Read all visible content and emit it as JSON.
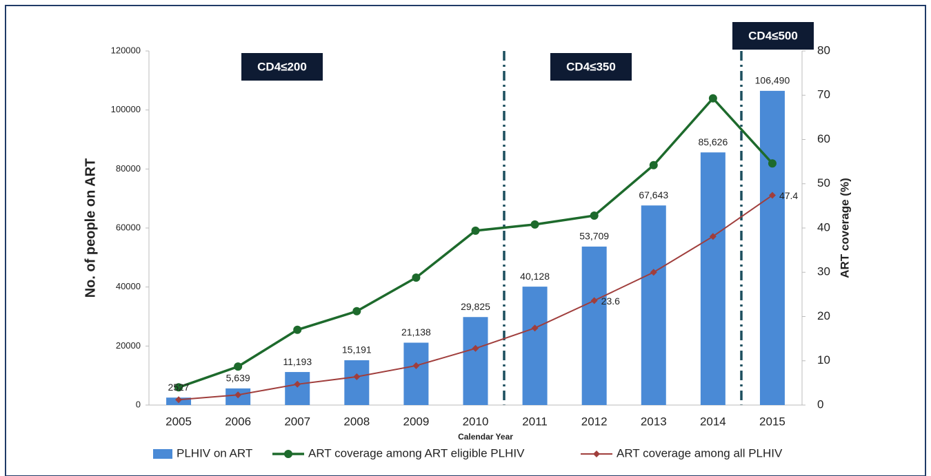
{
  "chart_data": {
    "type": "bar_line",
    "categories": [
      "2005",
      "2006",
      "2007",
      "2008",
      "2009",
      "2010",
      "2011",
      "2012",
      "2013",
      "2014",
      "2015"
    ],
    "series": [
      {
        "name": "PLHIV on ART",
        "type": "bar",
        "color": "#4a8ad6",
        "values": [
          2527,
          5639,
          11193,
          15191,
          21138,
          29825,
          40128,
          53709,
          67643,
          85626,
          106490
        ],
        "value_labels": [
          "2527",
          "5,639",
          "11,193",
          "15,191",
          "21,138",
          "29,825",
          "40,128",
          "53,709",
          "67,643",
          "85,626",
          "106,490"
        ]
      },
      {
        "name": "ART coverage among ART eligible PLHIV",
        "type": "line",
        "axis": "y2",
        "marker": "circle",
        "color": "#1d6a2c",
        "values": [
          4.0,
          8.7,
          17.0,
          21.2,
          28.8,
          39.4,
          40.8,
          42.8,
          54.2,
          69.3,
          54.6
        ]
      },
      {
        "name": "ART coverage among all PLHIV",
        "type": "line",
        "axis": "y2",
        "marker": "diamond",
        "color": "#a03e3c",
        "values": [
          1.2,
          2.3,
          4.7,
          6.4,
          8.9,
          12.8,
          17.4,
          23.6,
          30.0,
          38.1,
          47.4
        ],
        "value_labels": [
          null,
          null,
          null,
          null,
          null,
          null,
          null,
          "23.6",
          null,
          null,
          "47.4"
        ]
      }
    ],
    "ylabel": "No. of people on ART",
    "y2label": "ART coverage (%)",
    "xlabel": "Calendar Year",
    "ylim": [
      0,
      120000
    ],
    "yticks": [
      0,
      20000,
      40000,
      60000,
      80000,
      100000,
      120000
    ],
    "y2lim": [
      0,
      80
    ],
    "y2ticks": [
      0,
      10,
      20,
      30,
      40,
      50,
      60,
      70,
      80
    ],
    "annotations": [
      "CD4≤200",
      "CD4≤350",
      "CD4≤500"
    ],
    "legend": "bottom",
    "grid": false
  }
}
